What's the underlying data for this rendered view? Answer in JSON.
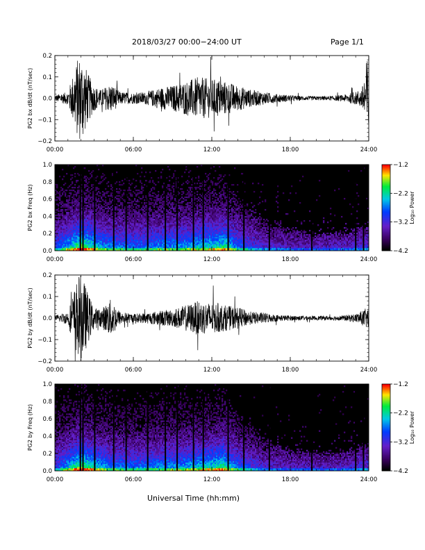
{
  "header": {
    "title": "2018/03/27  00:00−24:00 UT",
    "page": "Page 1/1"
  },
  "xlabel": "Universal Time (hh:mm)",
  "colors": {
    "trace": "#000000",
    "spec_bg": "#000000"
  },
  "chart_data": [
    {
      "type": "line",
      "title": "",
      "xlabel": "",
      "ylabel": "PG2 bx dB/dt (nT/sec)",
      "x_ticks": [
        "00:00",
        "06:00",
        "12:00",
        "18:00",
        "24:00"
      ],
      "y_ticks": [
        "0.2",
        "0.1",
        "0.0",
        "−0.1",
        "−0.2"
      ],
      "xlim": [
        0,
        24
      ],
      "ylim": [
        -0.2,
        0.2
      ],
      "series": [
        {
          "x": [
            0,
            1,
            1.8,
            2.1,
            2.5,
            3,
            3.5,
            4.3,
            5,
            6,
            7,
            8,
            9,
            10,
            11,
            12,
            12.5,
            13,
            14,
            15,
            16,
            17,
            18,
            19,
            20,
            21,
            22,
            23,
            23.5,
            23.9,
            24
          ],
          "amplitude": [
            0.015,
            0.03,
            0.2,
            0.2,
            0.12,
            0.06,
            0.04,
            0.07,
            0.03,
            0.025,
            0.03,
            0.05,
            0.06,
            0.08,
            0.1,
            0.09,
            0.09,
            0.08,
            0.06,
            0.04,
            0.03,
            0.02,
            0.015,
            0.01,
            0.01,
            0.01,
            0.015,
            0.03,
            0.05,
            0.2,
            0.2
          ]
        }
      ]
    },
    {
      "type": "heatmap",
      "title": "",
      "xlabel": "",
      "ylabel": "PG2 bx Freq (Hz)",
      "x_ticks": [
        "00:00",
        "06:00",
        "12:00",
        "18:00",
        "24:00"
      ],
      "y_ticks": [
        "1.0",
        "0.8",
        "0.6",
        "0.4",
        "0.2",
        "0.0"
      ],
      "xlim": [
        0,
        24
      ],
      "ylim": [
        0,
        1.0
      ],
      "colorbar": {
        "label": "Log₁₀ Power",
        "ticks": [
          "−1.2",
          "−2.2",
          "−3.2",
          "−4.2"
        ],
        "range": [
          -4.2,
          -1.2
        ]
      },
      "activity": [
        {
          "x": 0,
          "level": 0.45,
          "top": 0.8
        },
        {
          "x": 2,
          "level": 0.9,
          "top": 1.0
        },
        {
          "x": 4,
          "level": 0.6,
          "top": 0.85
        },
        {
          "x": 6,
          "level": 0.55,
          "top": 0.85
        },
        {
          "x": 8,
          "level": 0.6,
          "top": 0.9
        },
        {
          "x": 10,
          "level": 0.65,
          "top": 0.9
        },
        {
          "x": 12,
          "level": 0.75,
          "top": 0.9
        },
        {
          "x": 13,
          "level": 0.8,
          "top": 0.85
        },
        {
          "x": 14,
          "level": 0.55,
          "top": 0.6
        },
        {
          "x": 16,
          "level": 0.35,
          "top": 0.35
        },
        {
          "x": 18,
          "level": 0.3,
          "top": 0.25
        },
        {
          "x": 20,
          "level": 0.3,
          "top": 0.2
        },
        {
          "x": 22,
          "level": 0.3,
          "top": 0.2
        },
        {
          "x": 24,
          "level": 0.4,
          "top": 0.3
        }
      ],
      "gaps_hours": [
        1.95,
        2.15,
        3.05,
        4.5,
        5.45,
        7.1,
        8.45,
        9.35,
        10.6,
        11.35,
        13.25,
        14.45,
        16.4,
        19.65,
        23.0,
        23.6
      ]
    },
    {
      "type": "line",
      "title": "",
      "xlabel": "",
      "ylabel": "PG2 by dB/dt (nT/sec)",
      "x_ticks": [
        "00:00",
        "06:00",
        "12:00",
        "18:00",
        "24:00"
      ],
      "y_ticks": [
        "0.2",
        "0.1",
        "0.0",
        "−0.1",
        "−0.2"
      ],
      "xlim": [
        0,
        24
      ],
      "ylim": [
        -0.2,
        0.2
      ],
      "series": [
        {
          "x": [
            0,
            1,
            1.8,
            2.1,
            2.5,
            3,
            3.5,
            4.3,
            5,
            6,
            7,
            8,
            9,
            10,
            11,
            12,
            12.5,
            13,
            14,
            15,
            16,
            17,
            18,
            19,
            20,
            21,
            22,
            23,
            23.5,
            23.9,
            24
          ],
          "amplitude": [
            0.012,
            0.03,
            0.2,
            0.2,
            0.12,
            0.05,
            0.04,
            0.09,
            0.03,
            0.02,
            0.025,
            0.035,
            0.04,
            0.06,
            0.08,
            0.07,
            0.07,
            0.06,
            0.05,
            0.03,
            0.025,
            0.015,
            0.012,
            0.01,
            0.01,
            0.01,
            0.012,
            0.02,
            0.035,
            0.05,
            0.05
          ]
        }
      ]
    },
    {
      "type": "heatmap",
      "title": "",
      "xlabel": "",
      "ylabel": "PG2 by Freq (Hz)",
      "x_ticks": [
        "00:00",
        "06:00",
        "12:00",
        "18:00",
        "24:00"
      ],
      "y_ticks": [
        "1.0",
        "0.8",
        "0.6",
        "0.4",
        "0.2",
        "0.0"
      ],
      "xlim": [
        0,
        24
      ],
      "ylim": [
        0,
        1.0
      ],
      "colorbar": {
        "label": "Log₁₀ Power",
        "ticks": [
          "−1.2",
          "−2.2",
          "−3.2",
          "−4.2"
        ],
        "range": [
          -4.2,
          -1.2
        ]
      },
      "activity": [
        {
          "x": 0,
          "level": 0.45,
          "top": 0.8
        },
        {
          "x": 2,
          "level": 0.9,
          "top": 1.0
        },
        {
          "x": 4,
          "level": 0.6,
          "top": 0.85
        },
        {
          "x": 6,
          "level": 0.55,
          "top": 0.85
        },
        {
          "x": 8,
          "level": 0.6,
          "top": 0.9
        },
        {
          "x": 10,
          "level": 0.65,
          "top": 0.9
        },
        {
          "x": 12,
          "level": 0.75,
          "top": 0.9
        },
        {
          "x": 13,
          "level": 0.8,
          "top": 0.85
        },
        {
          "x": 14,
          "level": 0.55,
          "top": 0.6
        },
        {
          "x": 16,
          "level": 0.35,
          "top": 0.35
        },
        {
          "x": 18,
          "level": 0.3,
          "top": 0.25
        },
        {
          "x": 20,
          "level": 0.3,
          "top": 0.2
        },
        {
          "x": 22,
          "level": 0.3,
          "top": 0.2
        },
        {
          "x": 24,
          "level": 0.4,
          "top": 0.3
        }
      ],
      "gaps_hours": [
        1.95,
        2.15,
        3.05,
        4.5,
        5.45,
        7.1,
        8.45,
        9.35,
        10.6,
        11.35,
        13.25,
        14.45,
        16.4,
        19.65,
        23.0,
        23.6
      ]
    }
  ]
}
